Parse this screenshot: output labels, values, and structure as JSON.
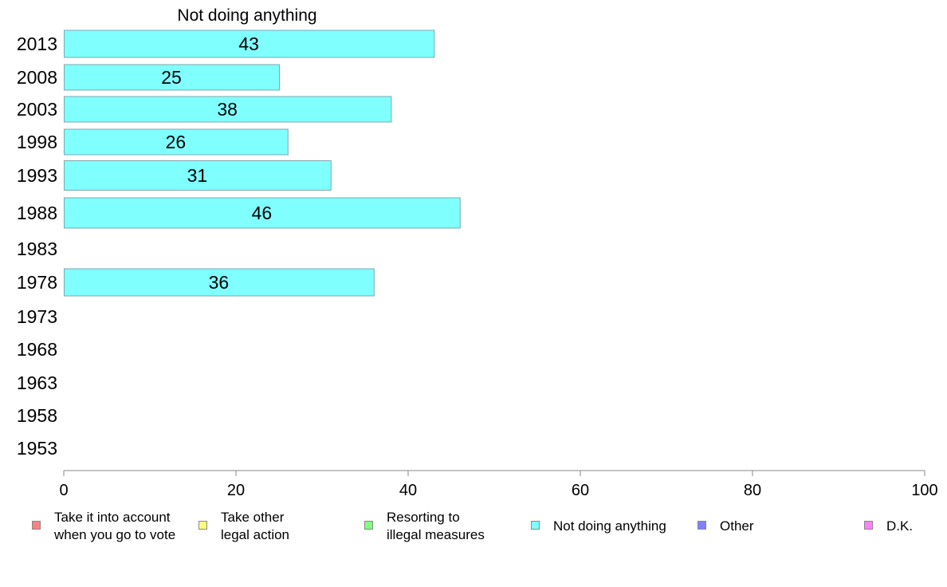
{
  "chart_data": {
    "type": "bar",
    "orientation": "horizontal",
    "title": "Not doing anything",
    "categories": [
      "2013",
      "2008",
      "2003",
      "1998",
      "1993",
      "1988",
      "1983",
      "1978",
      "1973",
      "1968",
      "1963",
      "1958",
      "1953"
    ],
    "series": [
      {
        "name": "Not doing anything",
        "color": "#80ffff",
        "values": [
          43,
          25,
          38,
          26,
          31,
          46,
          null,
          36,
          null,
          null,
          null,
          null,
          null
        ]
      }
    ],
    "xlim": [
      0,
      100
    ],
    "xticks": [
      "0",
      "20",
      "40",
      "60",
      "80",
      "100"
    ],
    "xlabel": "",
    "ylabel": "",
    "grid": false,
    "legend_placement": "bottom",
    "legend": [
      {
        "label": "Take it into account\nwhen you go to vote",
        "color": "#ff8080"
      },
      {
        "label": "Take other\nlegal action",
        "color": "#ffff80"
      },
      {
        "label": "Resorting to\nillegal measures",
        "color": "#80ff80"
      },
      {
        "label": "Not doing anything",
        "color": "#80ffff"
      },
      {
        "label": "Other",
        "color": "#8080ff"
      },
      {
        "label": "D.K.",
        "color": "#ff80ff"
      }
    ]
  }
}
